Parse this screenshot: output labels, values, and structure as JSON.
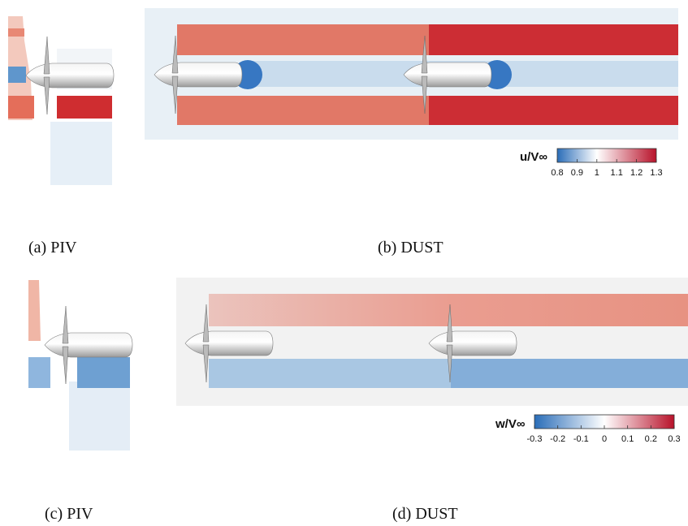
{
  "figure": {
    "panels": [
      {
        "caption": "(a) PIV"
      },
      {
        "caption": "(b) DUST"
      },
      {
        "caption": "(c) PIV"
      },
      {
        "caption": "(d) DUST"
      }
    ],
    "colorbars": [
      {
        "label": "u/V∞",
        "ticks": [
          0.8,
          0.9,
          1,
          1.1,
          1.2,
          1.3
        ]
      },
      {
        "label": "w/V∞",
        "ticks": [
          -0.3,
          -0.2,
          -0.1,
          0,
          0.1,
          0.2,
          0.3
        ]
      }
    ]
  }
}
